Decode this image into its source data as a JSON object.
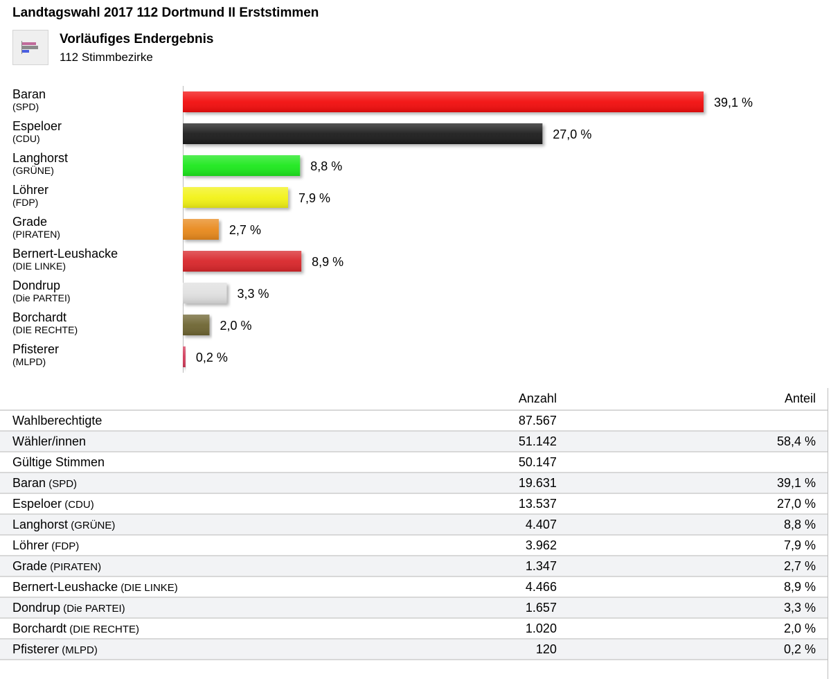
{
  "header": {
    "title": "Landtagswahl 2017 112 Dortmund II Erststimmen",
    "subtitle": "Vorläufiges Endergebnis",
    "districts": "112 Stimmbezirke",
    "icon": "bar-chart-icon"
  },
  "chart_data": {
    "type": "bar",
    "orientation": "horizontal",
    "title": "Landtagswahl 2017 112 Dortmund II Erststimmen",
    "xlabel": "",
    "ylabel": "",
    "xlim": [
      0,
      40
    ],
    "categories": [
      "Baran",
      "Espeloer",
      "Langhorst",
      "Löhrer",
      "Grade",
      "Bernert-Leushacke",
      "Dondrup",
      "Borchardt",
      "Pfisterer"
    ],
    "parties": [
      "(SPD)",
      "(CDU)",
      "(GRÜNE)",
      "(FDP)",
      "(PIRATEN)",
      "(DIE LINKE)",
      "(Die PARTEI)",
      "(DIE RECHTE)",
      "(MLPD)"
    ],
    "values": [
      39.1,
      27.0,
      8.8,
      7.9,
      2.7,
      8.9,
      3.3,
      2.0,
      0.2
    ],
    "value_labels": [
      "39,1 %",
      "27,0 %",
      "8,8 %",
      "7,9 %",
      "2,7 %",
      "8,9 %",
      "3,3 %",
      "2,0 %",
      "0,2 %"
    ],
    "colors": [
      "#f20a0a",
      "#1a1a1a",
      "#1ee81e",
      "#f2f218",
      "#e8891c",
      "#d8282b",
      "#e0e0e0",
      "#6e6530",
      "#d23a5a"
    ],
    "grid": false,
    "legend": "none"
  },
  "table": {
    "headers": [
      "",
      "Anzahl",
      "Anteil"
    ],
    "rows": [
      {
        "label": "Wahlberechtigte",
        "party": "",
        "count": "87.567",
        "share": ""
      },
      {
        "label": "Wähler/innen",
        "party": "",
        "count": "51.142",
        "share": "58,4 %"
      },
      {
        "label": "Gültige Stimmen",
        "party": "",
        "count": "50.147",
        "share": ""
      },
      {
        "label": "Baran",
        "party": "(SPD)",
        "count": "19.631",
        "share": "39,1 %"
      },
      {
        "label": "Espeloer",
        "party": "(CDU)",
        "count": "13.537",
        "share": "27,0 %"
      },
      {
        "label": "Langhorst",
        "party": "(GRÜNE)",
        "count": "4.407",
        "share": "8,8 %"
      },
      {
        "label": "Löhrer",
        "party": "(FDP)",
        "count": "3.962",
        "share": "7,9 %"
      },
      {
        "label": "Grade",
        "party": "(PIRATEN)",
        "count": "1.347",
        "share": "2,7 %"
      },
      {
        "label": "Bernert-Leushacke",
        "party": "(DIE LINKE)",
        "count": "4.466",
        "share": "8,9 %"
      },
      {
        "label": "Dondrup",
        "party": "(Die PARTEI)",
        "count": "1.657",
        "share": "3,3 %"
      },
      {
        "label": "Borchardt",
        "party": "(DIE RECHTE)",
        "count": "1.020",
        "share": "2,0 %"
      },
      {
        "label": "Pfisterer",
        "party": "(MLPD)",
        "count": "120",
        "share": "0,2 %"
      }
    ]
  }
}
